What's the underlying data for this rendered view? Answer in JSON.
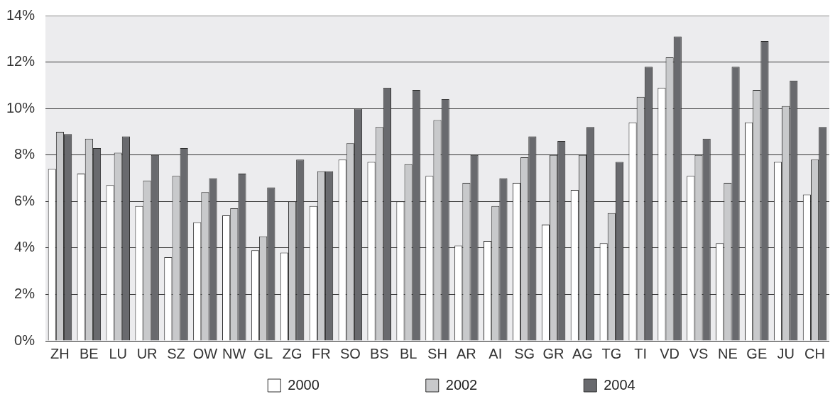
{
  "chart_data": {
    "type": "bar",
    "categories": [
      "ZH",
      "BE",
      "LU",
      "UR",
      "SZ",
      "OW",
      "NW",
      "GL",
      "ZG",
      "FR",
      "SO",
      "BS",
      "BL",
      "SH",
      "AR",
      "AI",
      "SG",
      "GR",
      "AG",
      "TG",
      "TI",
      "VD",
      "VS",
      "NE",
      "GE",
      "JU",
      "CH"
    ],
    "series": [
      {
        "name": "2000",
        "color": "#ffffff",
        "values": [
          7.4,
          7.2,
          6.7,
          5.8,
          3.6,
          5.1,
          5.4,
          3.9,
          3.8,
          5.8,
          7.8,
          7.7,
          6.0,
          7.1,
          4.1,
          4.3,
          6.8,
          5.0,
          6.5,
          4.2,
          9.4,
          10.9,
          7.1,
          4.2,
          9.4,
          7.7,
          6.3
        ]
      },
      {
        "name": "2002",
        "color": "#c8c9cb",
        "values": [
          9.0,
          8.7,
          8.1,
          6.9,
          7.1,
          6.4,
          5.7,
          4.5,
          6.0,
          7.3,
          8.5,
          9.2,
          7.6,
          9.5,
          6.8,
          5.8,
          7.9,
          8.0,
          8.0,
          5.5,
          10.5,
          12.2,
          8.0,
          6.8,
          10.8,
          10.1,
          7.8
        ]
      },
      {
        "name": "2004",
        "color": "#696a6e",
        "values": [
          8.9,
          8.3,
          8.8,
          8.0,
          8.3,
          7.0,
          7.2,
          6.6,
          7.8,
          7.3,
          10.0,
          10.9,
          10.8,
          10.4,
          8.0,
          7.0,
          8.8,
          8.6,
          9.2,
          7.7,
          11.8,
          13.1,
          8.7,
          11.8,
          12.9,
          11.2,
          9.2
        ]
      }
    ],
    "ylim": [
      0,
      14
    ],
    "yticks": [
      {
        "value": 0,
        "label": "0%"
      },
      {
        "value": 2,
        "label": "2%"
      },
      {
        "value": 4,
        "label": "4%"
      },
      {
        "value": 6,
        "label": "6%"
      },
      {
        "value": 8,
        "label": "8%"
      },
      {
        "value": 10,
        "label": "10%"
      },
      {
        "value": 12,
        "label": "12%"
      },
      {
        "value": 14,
        "label": "14%"
      }
    ],
    "grid": "y",
    "legend": "bottom"
  }
}
